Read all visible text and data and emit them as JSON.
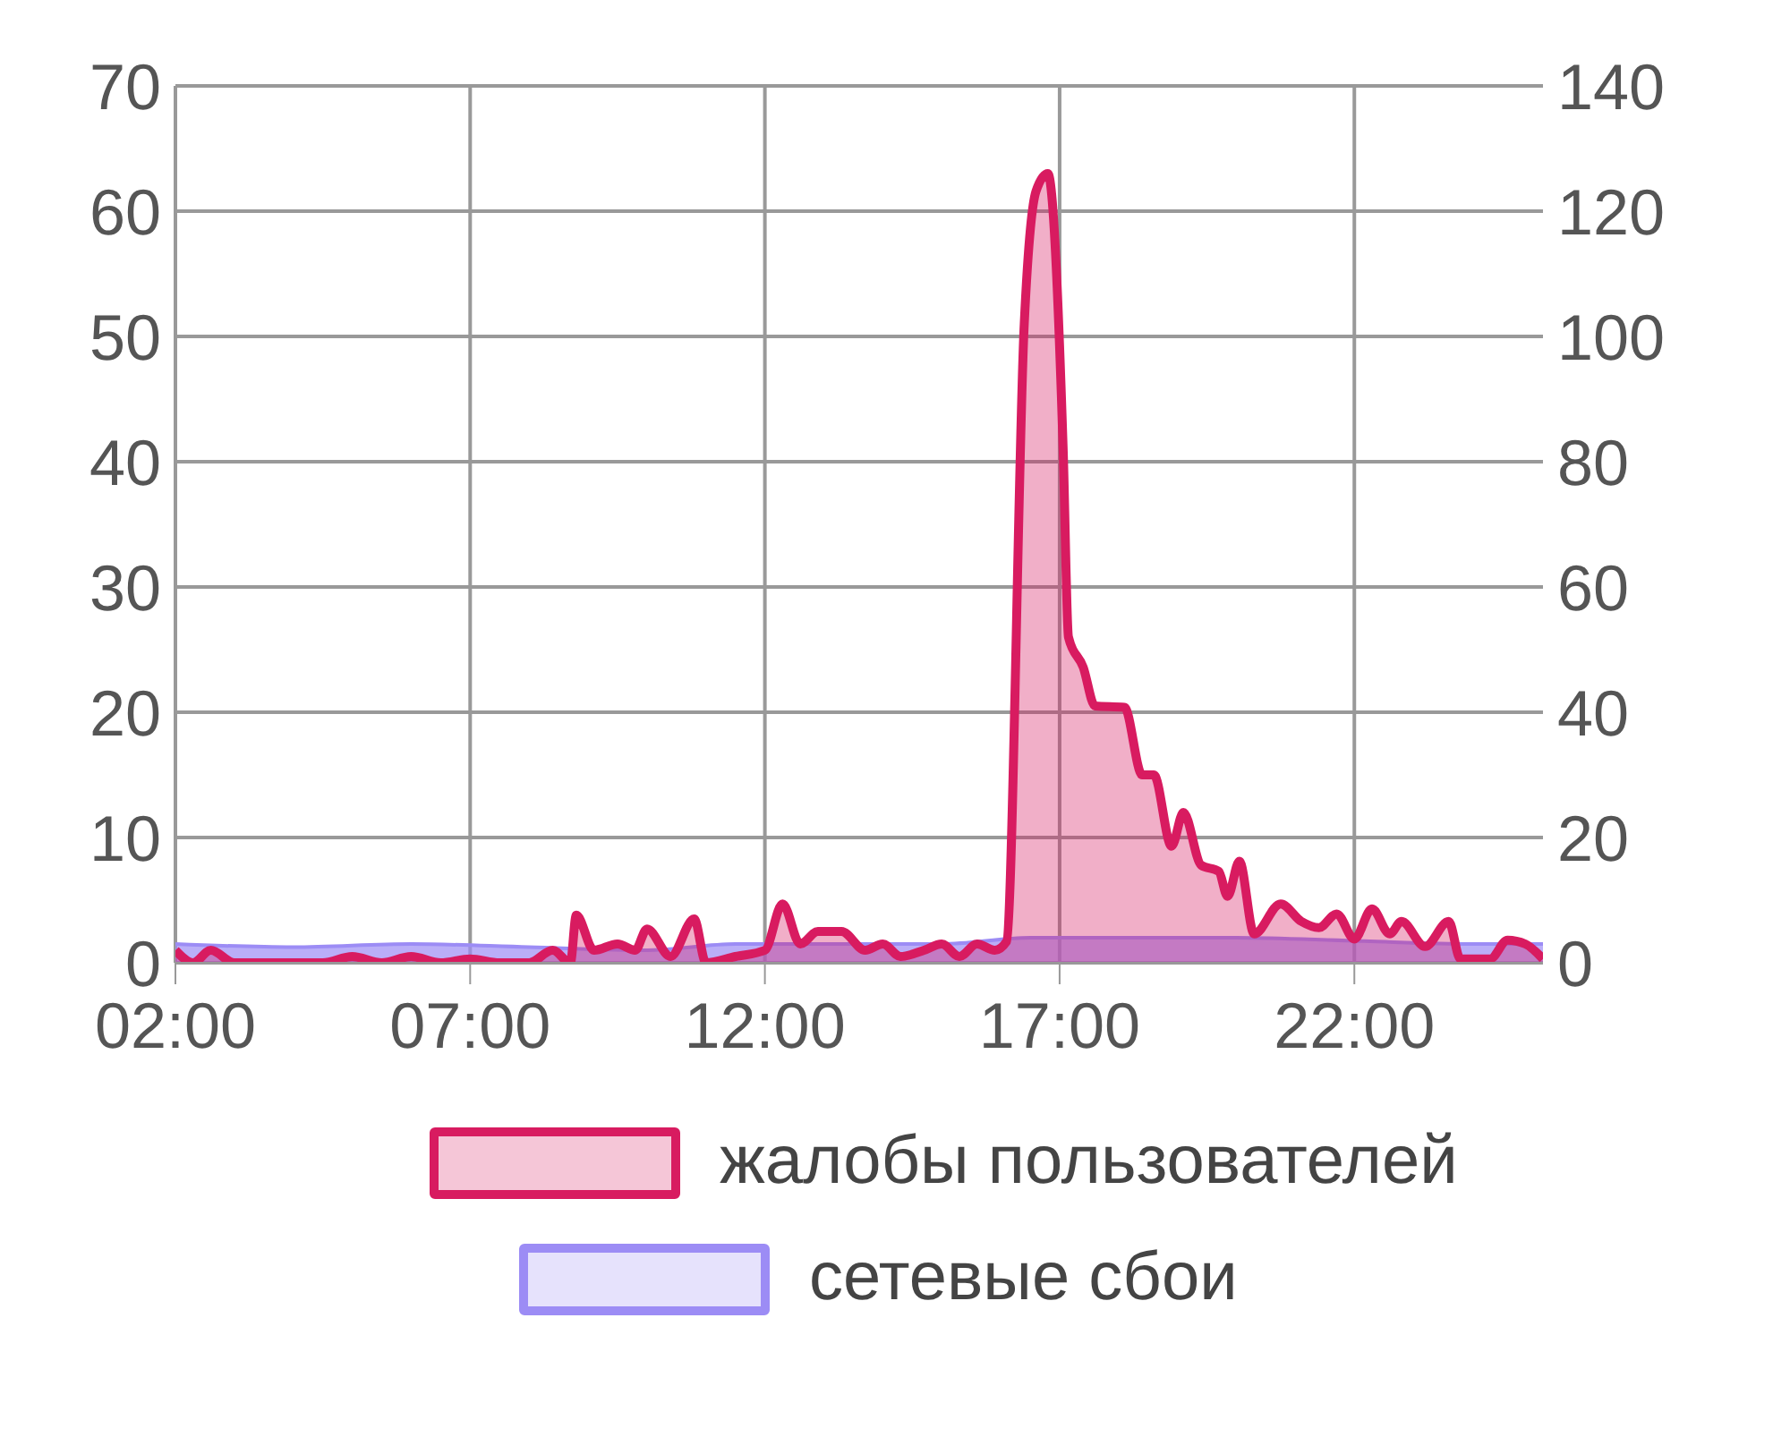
{
  "chart_data": {
    "type": "area",
    "x": [
      2.0,
      2.3,
      2.6,
      3.0,
      4.0,
      4.5,
      5.0,
      5.5,
      6.0,
      6.5,
      7.0,
      7.5,
      8.0,
      8.4,
      8.7,
      8.8,
      9.1,
      9.5,
      9.8,
      10.0,
      10.4,
      10.8,
      11.0,
      11.5,
      12.0,
      12.3,
      12.6,
      12.9,
      13.3,
      13.7,
      14.0,
      14.3,
      14.7,
      15.0,
      15.3,
      15.6,
      15.9,
      16.1,
      16.4,
      16.6,
      16.8,
      17.06,
      17.15,
      17.4,
      17.6,
      18.1,
      18.4,
      18.6,
      18.9,
      19.1,
      19.4,
      19.7,
      19.85,
      20.05,
      20.3,
      20.75,
      21.1,
      21.4,
      21.7,
      22.0,
      22.3,
      22.6,
      22.8,
      23.2,
      23.6,
      23.8,
      24.3,
      24.6,
      24.9,
      25.2
    ],
    "series": [
      {
        "name": "жалобы пользователей",
        "color": "#d81b60",
        "values": [
          1,
          0,
          1,
          0,
          0,
          0,
          0.5,
          0,
          0.5,
          0,
          0.3,
          0,
          0,
          1,
          0,
          3.8,
          1,
          1.5,
          1,
          2.7,
          0.5,
          3.5,
          0,
          0.5,
          1,
          4.7,
          1.5,
          2.5,
          2.5,
          1,
          1.5,
          0.5,
          1,
          1.5,
          0.5,
          1.5,
          1,
          1.7,
          51,
          61.6,
          63,
          41,
          26,
          23.6,
          20.5,
          20.4,
          15,
          15,
          9.3,
          12,
          7.8,
          7.3,
          5.3,
          8.1,
          2.3,
          4.7,
          3.3,
          2.8,
          3.9,
          1.9,
          4.3,
          2.3,
          3.3,
          1.3,
          3.3,
          0.3,
          0.3,
          1.8,
          1.5,
          0.3
        ]
      },
      {
        "name": "сетевые сбои",
        "color": "#9c8cf5",
        "axis": "y2",
        "x": [
          2,
          4,
          6,
          8,
          10,
          11.5,
          13,
          15,
          16.5,
          18,
          20,
          22,
          24,
          25.2
        ],
        "values": [
          3,
          2.5,
          3,
          2.5,
          2,
          3,
          3,
          3,
          4,
          4,
          4,
          3.5,
          3,
          3
        ]
      }
    ],
    "xlim": [
      2,
      25.2
    ],
    "xticks": [
      {
        "value": 2,
        "label": "02:00"
      },
      {
        "value": 7,
        "label": "07:00"
      },
      {
        "value": 12,
        "label": "12:00"
      },
      {
        "value": 17,
        "label": "17:00"
      },
      {
        "value": 22,
        "label": "22:00"
      }
    ],
    "ylim": [
      0,
      70
    ],
    "yticks": [
      0,
      10,
      20,
      30,
      40,
      50,
      60,
      70
    ],
    "y2lim": [
      0,
      140
    ],
    "y2ticks": [
      0,
      20,
      40,
      60,
      80,
      100,
      120,
      140
    ],
    "grid": true,
    "legend": "bottom"
  }
}
